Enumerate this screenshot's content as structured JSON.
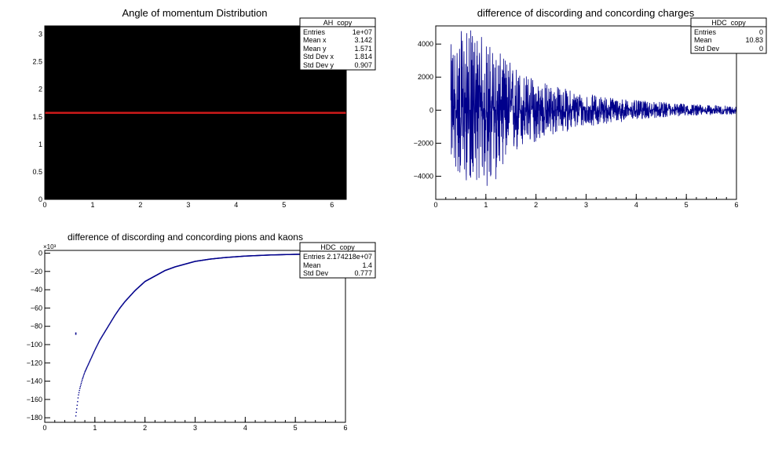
{
  "colors": {
    "background": "#ffffff",
    "frame": "#000000",
    "series_blue": "#00008b",
    "series_red": "#cc1a1a",
    "fill_black": "#000000"
  },
  "chart_data": [
    {
      "type": "heatmap",
      "title": "Angle of momentum Distribution",
      "xlim": [
        0,
        6.3
      ],
      "ylim": [
        0,
        3.15
      ],
      "x_ticks": [
        0,
        1,
        2,
        3,
        4,
        5,
        6
      ],
      "y_ticks": [
        0,
        0.5,
        1,
        1.5,
        2,
        2.5,
        3
      ],
      "y_tick_labels": [
        "0",
        "0.5",
        "1",
        "1.5",
        "2",
        "2.5",
        "3"
      ],
      "fill": "black",
      "line": {
        "y": 1.571,
        "x": [
          0,
          6.3
        ],
        "color": "#cc1a1a"
      },
      "stats": {
        "name": "AH_copy",
        "rows": [
          {
            "label": "Entries",
            "value": "1e+07"
          },
          {
            "label": "Mean x",
            "value": "3.142"
          },
          {
            "label": "Mean y",
            "value": "1.571"
          },
          {
            "label": "Std Dev x",
            "value": "1.814"
          },
          {
            "label": "Std Dev y",
            "value": "0.907"
          }
        ]
      }
    },
    {
      "type": "line",
      "title": "difference of discording and concording charges",
      "xlim": [
        0,
        6
      ],
      "ylim": [
        -5400,
        5100
      ],
      "x_ticks": [
        0,
        1,
        2,
        3,
        4,
        5,
        6
      ],
      "y_ticks": [
        -4000,
        -2000,
        0,
        2000,
        4000
      ],
      "y_tick_labels": [
        "−4000",
        "−2000",
        "0",
        "2000",
        "4000"
      ],
      "series": [
        {
          "envelope": {
            "x": [
              0.3,
              0.5,
              0.7,
              0.9,
              1.1,
              1.3,
              1.5,
              1.8,
              2.1,
              2.5,
              3.0,
              3.5,
              4.0,
              4.5,
              5.0,
              5.5,
              6.0
            ],
            "upper": [
              4000,
              4800,
              4900,
              4600,
              4000,
              3400,
              3000,
              2200,
              1800,
              1400,
              1000,
              800,
              600,
              500,
              400,
              300,
              250
            ],
            "lower": [
              -3200,
              -4300,
              -4400,
              -4200,
              -5300,
              -3400,
              -3000,
              -2300,
              -1800,
              -1400,
              -1000,
              -800,
              -600,
              -450,
              -350,
              -300,
              -250
            ]
          }
        }
      ],
      "stats": {
        "name": "HDC_copy",
        "rows": [
          {
            "label": "Entries",
            "value": "0"
          },
          {
            "label": "Mean",
            "value": "10.83"
          },
          {
            "label": "Std Dev",
            "value": "0"
          }
        ]
      }
    },
    {
      "type": "scatter",
      "title": "difference of discording and concording pions and kaons",
      "xlim": [
        0,
        6
      ],
      "ylim": [
        -185,
        3
      ],
      "multiplier_label": "×10³",
      "x_ticks": [
        0,
        1,
        2,
        3,
        4,
        5,
        6
      ],
      "y_ticks": [
        -180,
        -160,
        -140,
        -120,
        -100,
        -80,
        -60,
        -40,
        -20,
        0
      ],
      "y_tick_labels": [
        "−180",
        "−160",
        "−140",
        "−120",
        "−100",
        "−80",
        "−60",
        "−40",
        "−20",
        "0"
      ],
      "series": [
        {
          "x": [
            0.62,
            0.65,
            0.67,
            0.7,
            0.75,
            0.8,
            0.9,
            1.0,
            1.1,
            1.2,
            1.3,
            1.4,
            1.5,
            1.6,
            1.7,
            1.8,
            1.9,
            2.0,
            2.2,
            2.4,
            2.6,
            2.8,
            3.0,
            3.3,
            3.6,
            4.0,
            4.5,
            5.0,
            5.5,
            6.0
          ],
          "y": [
            -178,
            -165,
            -156,
            -148,
            -138,
            -130,
            -118,
            -106,
            -95,
            -86,
            -77,
            -68,
            -60,
            -53,
            -47,
            -41,
            -36,
            -31,
            -25,
            -19,
            -15,
            -12,
            -9,
            -6.5,
            -4.8,
            -3.2,
            -2.0,
            -1.3,
            -0.9,
            -0.6
          ],
          "outlier": {
            "x": 0.62,
            "y": -88
          }
        }
      ],
      "stats": {
        "name": "HDC_copy",
        "rows": [
          {
            "label": "Entries",
            "value": "2.174218e+07"
          },
          {
            "label": "Mean",
            "value": "1.4"
          },
          {
            "label": "Std Dev",
            "value": "0.777"
          }
        ]
      }
    }
  ]
}
